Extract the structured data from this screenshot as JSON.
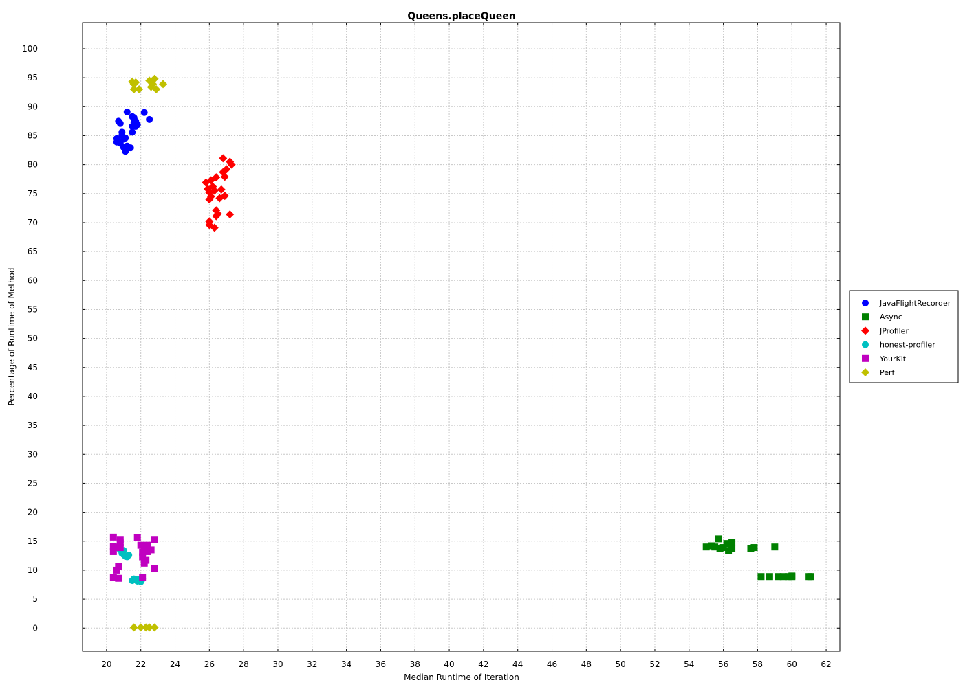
{
  "chart_data": {
    "type": "scatter",
    "title": "Queens.placeQueen",
    "xlabel": "Median Runtime of Iteration",
    "ylabel": "Percentage of Runtime of Method",
    "xlim": [
      18.6,
      62.8
    ],
    "ylim": [
      -4,
      104.5
    ],
    "xticks": [
      20,
      22,
      24,
      26,
      28,
      30,
      32,
      34,
      36,
      38,
      40,
      42,
      44,
      46,
      48,
      50,
      52,
      54,
      56,
      58,
      60,
      62
    ],
    "yticks": [
      0,
      5,
      10,
      15,
      20,
      25,
      30,
      35,
      40,
      45,
      50,
      55,
      60,
      65,
      70,
      75,
      80,
      85,
      90,
      95,
      100
    ],
    "grid": true,
    "legend_position": "right",
    "series": [
      {
        "name": "JavaFlightRecorder",
        "marker": "circle",
        "color": "#0000ff",
        "points": [
          [
            20.6,
            84.5
          ],
          [
            20.6,
            83.9
          ],
          [
            20.7,
            87.5
          ],
          [
            20.8,
            87.1
          ],
          [
            20.8,
            83.7
          ],
          [
            20.9,
            85.6
          ],
          [
            20.9,
            85.1
          ],
          [
            21.0,
            84.4
          ],
          [
            21.0,
            83.0
          ],
          [
            21.1,
            82.3
          ],
          [
            21.1,
            84.6
          ],
          [
            21.2,
            89.1
          ],
          [
            21.2,
            83.2
          ],
          [
            21.4,
            82.9
          ],
          [
            21.5,
            86.6
          ],
          [
            21.5,
            85.6
          ],
          [
            21.5,
            88.3
          ],
          [
            21.6,
            88.1
          ],
          [
            21.6,
            87.3
          ],
          [
            21.7,
            86.6
          ],
          [
            21.7,
            87.5
          ],
          [
            21.8,
            86.9
          ],
          [
            22.2,
            89.0
          ],
          [
            22.5,
            87.8
          ]
        ]
      },
      {
        "name": "Async",
        "marker": "square",
        "color": "#008000",
        "points": [
          [
            55.0,
            14.0
          ],
          [
            55.3,
            14.2
          ],
          [
            55.5,
            14.0
          ],
          [
            55.7,
            15.4
          ],
          [
            55.8,
            13.7
          ],
          [
            56.0,
            13.9
          ],
          [
            56.2,
            14.6
          ],
          [
            56.3,
            13.4
          ],
          [
            56.5,
            14.8
          ],
          [
            56.5,
            13.7
          ],
          [
            57.6,
            13.7
          ],
          [
            57.8,
            13.9
          ],
          [
            59.0,
            14.0
          ],
          [
            58.2,
            8.9
          ],
          [
            58.7,
            8.9
          ],
          [
            59.2,
            8.9
          ],
          [
            59.5,
            8.9
          ],
          [
            59.8,
            8.9
          ],
          [
            60.0,
            9.0
          ],
          [
            60.0,
            8.9
          ],
          [
            61.0,
            8.9
          ],
          [
            61.1,
            8.9
          ]
        ]
      },
      {
        "name": "JProfiler",
        "marker": "diamond",
        "color": "#ff0000",
        "points": [
          [
            25.8,
            76.9
          ],
          [
            25.9,
            75.8
          ],
          [
            26.0,
            75.2
          ],
          [
            26.0,
            70.2
          ],
          [
            26.0,
            69.6
          ],
          [
            26.0,
            74.0
          ],
          [
            26.1,
            77.3
          ],
          [
            26.1,
            74.5
          ],
          [
            26.2,
            76.2
          ],
          [
            26.3,
            69.1
          ],
          [
            26.3,
            75.5
          ],
          [
            26.4,
            77.8
          ],
          [
            26.4,
            71.1
          ],
          [
            26.4,
            72.1
          ],
          [
            26.5,
            71.5
          ],
          [
            26.6,
            74.2
          ],
          [
            26.7,
            75.7
          ],
          [
            26.8,
            81.1
          ],
          [
            26.8,
            78.7
          ],
          [
            26.9,
            74.6
          ],
          [
            26.9,
            77.9
          ],
          [
            27.0,
            79.2
          ],
          [
            27.2,
            71.4
          ],
          [
            27.2,
            80.5
          ],
          [
            27.3,
            80.0
          ]
        ]
      },
      {
        "name": "honest-profiler",
        "marker": "circle",
        "color": "#00c0c0",
        "points": [
          [
            20.7,
            14.0
          ],
          [
            20.8,
            13.5
          ],
          [
            20.9,
            12.9
          ],
          [
            21.0,
            13.4
          ],
          [
            21.0,
            12.7
          ],
          [
            21.1,
            12.4
          ],
          [
            21.2,
            12.3
          ],
          [
            21.3,
            12.6
          ],
          [
            21.5,
            8.2
          ],
          [
            21.6,
            8.5
          ],
          [
            21.7,
            8.4
          ],
          [
            21.8,
            8.1
          ],
          [
            21.9,
            8.4
          ],
          [
            22.0,
            8.0
          ],
          [
            22.1,
            8.5
          ]
        ]
      },
      {
        "name": "YourKit",
        "marker": "square",
        "color": "#c000c0",
        "points": [
          [
            20.4,
            15.7
          ],
          [
            20.4,
            14.1
          ],
          [
            20.4,
            13.2
          ],
          [
            20.5,
            13.9
          ],
          [
            20.4,
            8.8
          ],
          [
            20.6,
            10.0
          ],
          [
            20.7,
            8.6
          ],
          [
            20.7,
            10.6
          ],
          [
            20.8,
            15.3
          ],
          [
            20.8,
            14.7
          ],
          [
            20.8,
            13.9
          ],
          [
            21.8,
            15.6
          ],
          [
            22.0,
            14.3
          ],
          [
            22.1,
            13.1
          ],
          [
            22.1,
            12.3
          ],
          [
            22.2,
            14.1
          ],
          [
            22.2,
            11.2
          ],
          [
            22.3,
            11.7
          ],
          [
            22.4,
            14.3
          ],
          [
            22.4,
            13.2
          ],
          [
            22.6,
            13.5
          ],
          [
            22.1,
            8.8
          ],
          [
            22.8,
            15.3
          ],
          [
            22.8,
            10.3
          ]
        ]
      },
      {
        "name": "Perf",
        "marker": "diamond",
        "color": "#c0c000",
        "points": [
          [
            21.5,
            94.3
          ],
          [
            21.6,
            93.9
          ],
          [
            21.6,
            93.0
          ],
          [
            21.7,
            94.2
          ],
          [
            21.9,
            93.0
          ],
          [
            22.5,
            94.5
          ],
          [
            22.6,
            93.4
          ],
          [
            22.7,
            93.9
          ],
          [
            22.8,
            94.8
          ],
          [
            22.9,
            93.0
          ],
          [
            23.3,
            93.9
          ],
          [
            21.6,
            0.1
          ],
          [
            22.0,
            0.1
          ],
          [
            22.3,
            0.1
          ],
          [
            22.5,
            0.1
          ],
          [
            22.8,
            0.1
          ]
        ]
      }
    ]
  }
}
